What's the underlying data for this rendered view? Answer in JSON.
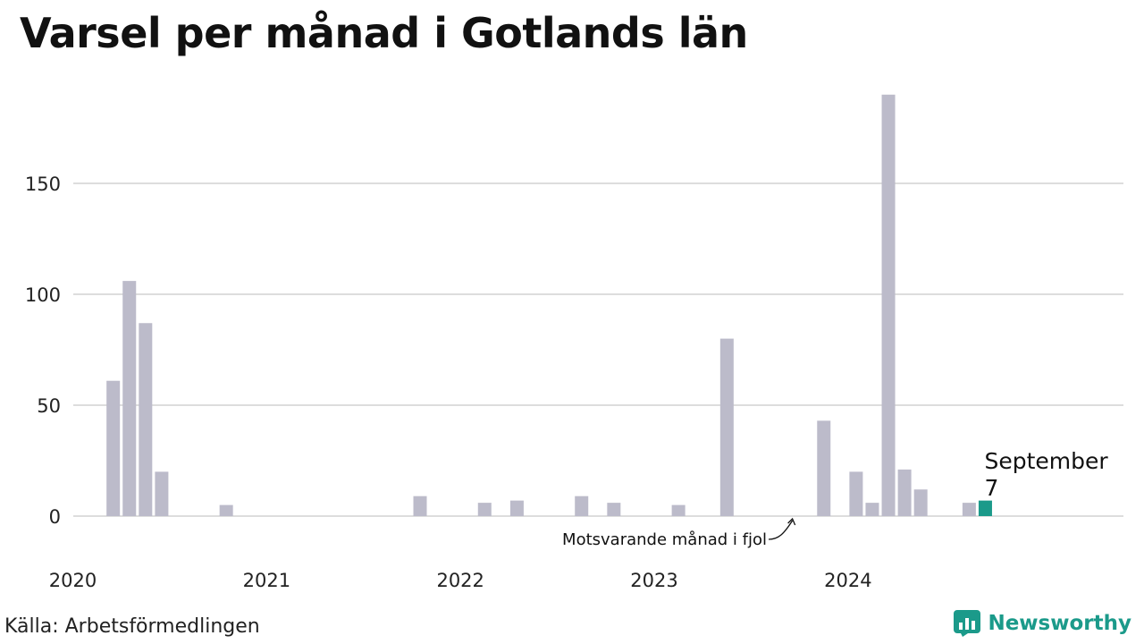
{
  "title": "Varsel per månad i Gotlands län",
  "source": "Källa: Arbetsförmedlingen",
  "brand": {
    "name": "Newsworthy",
    "icon": "newsworthy-logo-icon",
    "color": "#1b9a8a"
  },
  "colors": {
    "bar": "#bcbbca",
    "previous_year": "#474747",
    "current": "#1b9a8a",
    "grid": "#dddddd"
  },
  "chart_data": {
    "type": "bar",
    "title": "Varsel per månad i Gotlands län",
    "xlabel": "",
    "ylabel": "",
    "ylim": [
      0,
      190
    ],
    "yticks": [
      0,
      50,
      100,
      150
    ],
    "xtick_labels": [
      "2020",
      "2021",
      "2022",
      "2023",
      "2024"
    ],
    "grid": true,
    "categories": [
      "2020-01",
      "2020-02",
      "2020-03",
      "2020-04",
      "2020-05",
      "2020-06",
      "2020-07",
      "2020-08",
      "2020-09",
      "2020-10",
      "2020-11",
      "2020-12",
      "2021-01",
      "2021-02",
      "2021-03",
      "2021-04",
      "2021-05",
      "2021-06",
      "2021-07",
      "2021-08",
      "2021-09",
      "2021-10",
      "2021-11",
      "2021-12",
      "2022-01",
      "2022-02",
      "2022-03",
      "2022-04",
      "2022-05",
      "2022-06",
      "2022-07",
      "2022-08",
      "2022-09",
      "2022-10",
      "2022-11",
      "2022-12",
      "2023-01",
      "2023-02",
      "2023-03",
      "2023-04",
      "2023-05",
      "2023-06",
      "2023-07",
      "2023-08",
      "2023-09",
      "2023-10",
      "2023-11",
      "2023-12",
      "2024-01",
      "2024-02",
      "2024-03",
      "2024-04",
      "2024-05",
      "2024-06",
      "2024-07",
      "2024-08",
      "2024-09"
    ],
    "values": [
      0,
      0,
      61,
      106,
      87,
      20,
      0,
      0,
      0,
      5,
      0,
      0,
      0,
      0,
      0,
      0,
      0,
      0,
      0,
      0,
      0,
      9,
      0,
      0,
      0,
      6,
      0,
      7,
      0,
      0,
      0,
      9,
      0,
      6,
      0,
      0,
      0,
      5,
      0,
      0,
      80,
      0,
      0,
      0,
      0,
      0,
      43,
      0,
      20,
      6,
      190,
      21,
      12,
      0,
      0,
      6,
      7
    ],
    "previous_year_index": 44,
    "current_index": 56,
    "annotations": {
      "previous_year": "Motsvarande månad i fjol",
      "current_month": "September",
      "current_value": "7"
    }
  }
}
